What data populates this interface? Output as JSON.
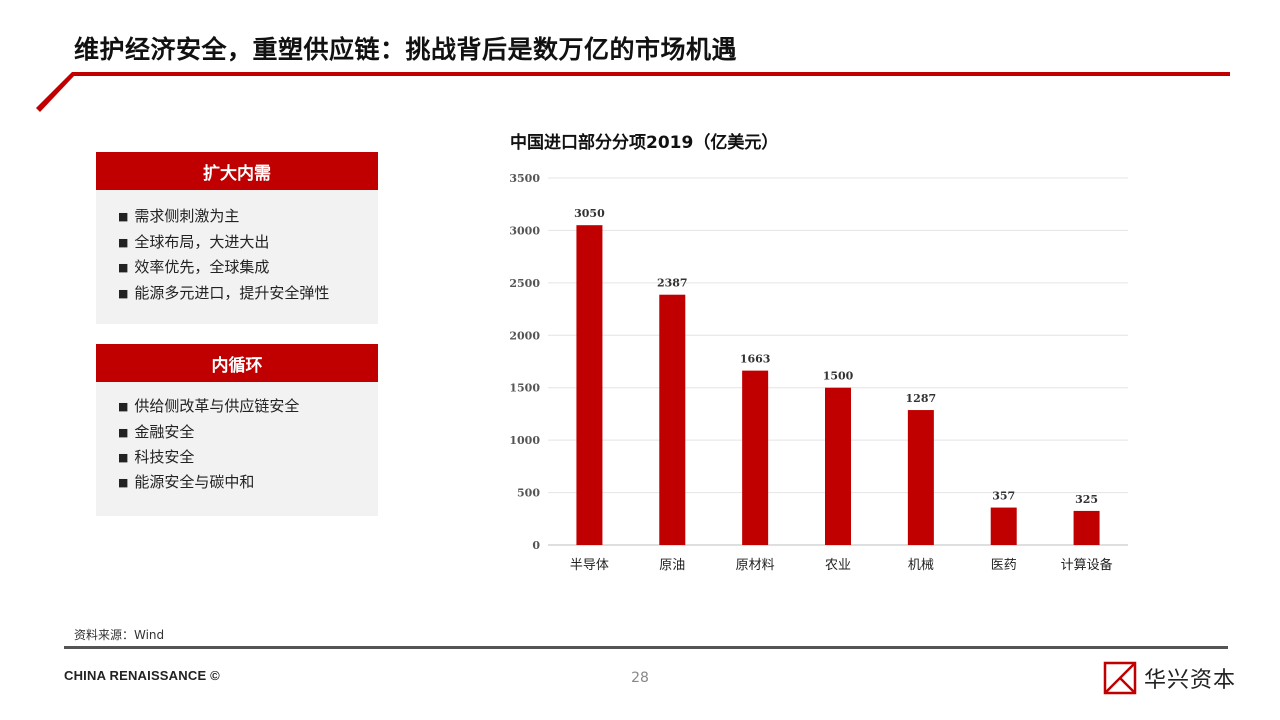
{
  "header": {
    "title": "维护经济安全，重塑供应链：挑战背后是数万亿的市场机遇"
  },
  "panels": [
    {
      "title": "扩大内需",
      "items": [
        "需求侧刺激为主",
        "全球布局，大进大出",
        "效率优先，全球集成",
        "能源多元进口，提升安全弹性"
      ]
    },
    {
      "title": "内循环",
      "items": [
        "供给侧改革与供应链安全",
        "金融安全",
        "科技安全",
        "能源安全与碳中和"
      ]
    }
  ],
  "bullet_glyph": "■",
  "chart_data": {
    "type": "bar",
    "title": "中国进口部分分项2019（亿美元）",
    "categories": [
      "半导体",
      "原油",
      "原材料",
      "农业",
      "机械",
      "医药",
      "计算设备"
    ],
    "values": [
      3050,
      2387,
      1663,
      1500,
      1287,
      357,
      325
    ],
    "ylim": [
      0,
      3500
    ],
    "yticks": [
      0,
      500,
      1000,
      1500,
      2000,
      2500,
      3000,
      3500
    ],
    "xlabel": "",
    "ylabel": "",
    "grid": true,
    "data_labels": true,
    "bar_color": "#c00000"
  },
  "footer": {
    "source": "资料来源：Wind",
    "company": "CHINA RENAISSANCE ©",
    "page_number": "28",
    "logo_text": "华兴资本"
  },
  "colors": {
    "accent": "#c00000",
    "panel_bg": "#f2f2f2",
    "footer_line": "#555555"
  }
}
